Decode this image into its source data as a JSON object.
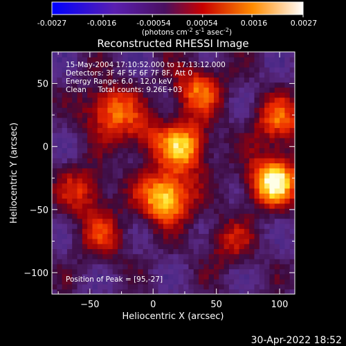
{
  "colorbar": {
    "ticks": [
      "-0.0027",
      "-0.0016",
      "-0.00054",
      "0.00054",
      "0.0016",
      "0.0027"
    ],
    "unit_prefix": "(photons cm",
    "unit_exp1": "-2",
    "unit_mid": " s",
    "unit_exp2": "-1",
    "unit_mid2": " asec",
    "unit_exp3": "-2",
    "unit_suffix": ")",
    "range": [
      -0.0027,
      0.0027
    ]
  },
  "chart_data": {
    "type": "heatmap",
    "title": "Reconstructed RHESSI Image",
    "xlabel": "Heliocentric X (arcsec)",
    "ylabel": "Heliocentric Y (arcsec)",
    "xlim": [
      -80,
      112
    ],
    "ylim": [
      -117,
      75
    ],
    "xticks": [
      -50,
      0,
      50,
      100
    ],
    "yticks": [
      50,
      0,
      -50,
      -100
    ],
    "colormap": "blue-purple-red-yellow-white",
    "info": [
      "15-May-2004 17:10:52.000 to 17:13:12.000",
      "Detectors: 3F 4F 5F 6F 7F 8F, Att 0",
      "Energy Range: 6.0 - 12.0 keV",
      "Clean     Total counts: 9.26E+03"
    ],
    "peak_label": "Position of Peak = [95,-27]",
    "sources": [
      {
        "x": 10,
        "y": -40,
        "amp": 1.0
      },
      {
        "x": 95,
        "y": -27,
        "amp": 1.0
      },
      {
        "x": 25,
        "y": 0,
        "amp": 0.8
      },
      {
        "x": -35,
        "y": 30,
        "amp": 0.65
      },
      {
        "x": 35,
        "y": 45,
        "amp": 0.6
      },
      {
        "x": 100,
        "y": 20,
        "amp": 0.6
      },
      {
        "x": -55,
        "y": -35,
        "amp": 0.45
      },
      {
        "x": -40,
        "y": -70,
        "amp": 0.4
      },
      {
        "x": 60,
        "y": -75,
        "amp": 0.35
      },
      {
        "x": -10,
        "y": 10,
        "amp": 0.4
      }
    ]
  },
  "timestamp": "30-Apr-2022 18:52"
}
